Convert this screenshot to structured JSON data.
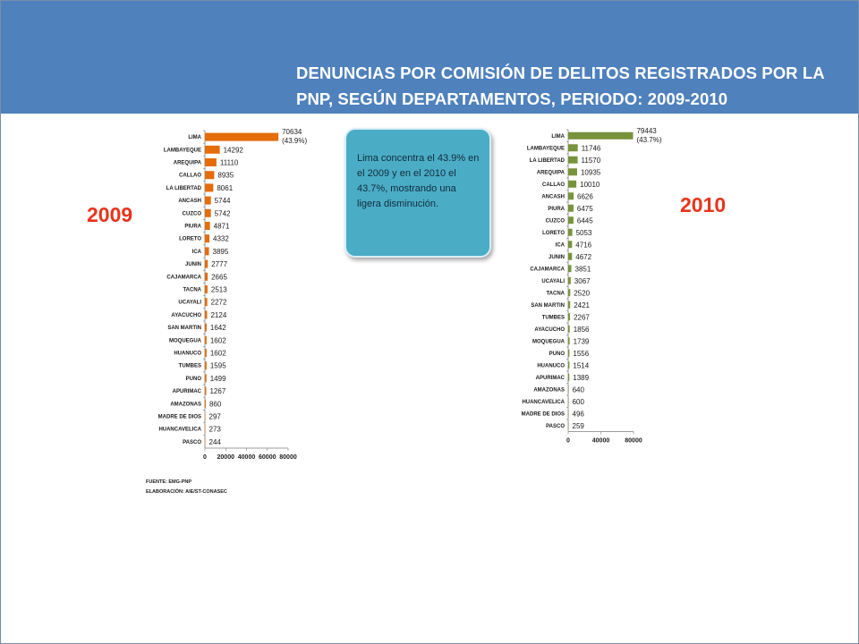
{
  "header": {
    "title_line1": "DENUNCIAS POR COMISIÓN DE DELITOS REGISTRADOS POR LA",
    "title_line2": "PNP, SEGÚN DEPARTAMENTOS, PERIODO: 2009-2010"
  },
  "callout": {
    "text": "Lima concentra el 43.9% en el 2009 y en el 2010 el 43.7%, mostrando una ligera disminución."
  },
  "source": {
    "fuente": "FUENTE: EMG-PNP",
    "elaboracion": "ELABORACIÓN: AIE/ST-CONASEC"
  },
  "colors": {
    "header_bg": "#4f81bd",
    "bar_2009": "#e46c0a",
    "bar_2010": "#77933c",
    "year_label": "#e8341c",
    "callout_bg": "#4bacc6"
  },
  "chart_data": [
    {
      "type": "bar",
      "orientation": "horizontal",
      "year_label": "2009",
      "categories": [
        "LIMA",
        "LAMBAYEQUE",
        "AREQUIPA",
        "CALLAO",
        "LA LIBERTAD",
        "ANCASH",
        "CUZCO",
        "PIURA",
        "LORETO",
        "ICA",
        "JUNIN",
        "CAJAMARCA",
        "TACNA",
        "UCAYALI",
        "AYACUCHO",
        "SAN MARTIN",
        "MOQUEGUA",
        "HUANUCO",
        "TUMBES",
        "PUNO",
        "APURIMAC",
        "AMAZONAS",
        "MADRE DE DIOS",
        "HUANCAVELICA",
        "PASCO"
      ],
      "values": [
        70634,
        14292,
        11110,
        8935,
        8061,
        5744,
        5742,
        4871,
        4332,
        3895,
        2777,
        2665,
        2513,
        2272,
        2124,
        1642,
        1602,
        1602,
        1595,
        1499,
        1267,
        860,
        297,
        273,
        244
      ],
      "value_labels": [
        "70634",
        "14292",
        "11110",
        "8935",
        "8061",
        "5744",
        "5742",
        "4871",
        "4332",
        "3895",
        "2777",
        "2665",
        "2513",
        "2272",
        "2124",
        "1642",
        "1602",
        "1602",
        "1595",
        "1499",
        "1267",
        "860",
        "297",
        "273",
        "244"
      ],
      "first_note": "(43.9%)",
      "xlim": [
        0,
        80000
      ],
      "xticks": [
        0,
        20000,
        40000,
        60000,
        80000
      ],
      "xtick_labels": [
        "0",
        "20000",
        "40000",
        "60000",
        "80000"
      ],
      "bar_color": "#e46c0a",
      "grid": false
    },
    {
      "type": "bar",
      "orientation": "horizontal",
      "year_label": "2010",
      "categories": [
        "LIMA",
        "LAMBAYEQUE",
        "LA LIBERTAD",
        "AREQUIPA",
        "CALLAO",
        "ANCASH",
        "PIURA",
        "CUZCO",
        "LORETO",
        "ICA",
        "JUNIN",
        "CAJAMARCA",
        "UCAYALI",
        "TACNA",
        "SAN MARTIN",
        "TUMBES",
        "AYACUCHO",
        "MOQUEGUA",
        "PUNO",
        "HUANUCO",
        "APURIMAC",
        "AMAZONAS",
        "HUANCAVELICA",
        "MADRE DE DIOS",
        "PASCO"
      ],
      "values": [
        79443,
        11746,
        11570,
        10935,
        10010,
        6626,
        6475,
        6445,
        5053,
        4716,
        4672,
        3851,
        3067,
        2520,
        2421,
        2267,
        1856,
        1739,
        1556,
        1514,
        1389,
        640,
        600,
        496,
        259
      ],
      "value_labels": [
        "79443",
        "11746",
        "11570",
        "10935",
        "10010",
        "6626",
        "6475",
        "6445",
        "5053",
        "4716",
        "4672",
        "3851",
        "3067",
        "2520",
        "2421",
        "2267",
        "1856",
        "1739",
        "1556",
        "1514",
        "1389",
        "640",
        "600",
        "496",
        "259"
      ],
      "first_note": "(43.7%)",
      "xlim": [
        0,
        80000
      ],
      "xticks": [
        0,
        40000,
        80000
      ],
      "xtick_labels": [
        "0",
        "40000",
        "80000"
      ],
      "bar_color": "#77933c",
      "grid": false
    }
  ]
}
